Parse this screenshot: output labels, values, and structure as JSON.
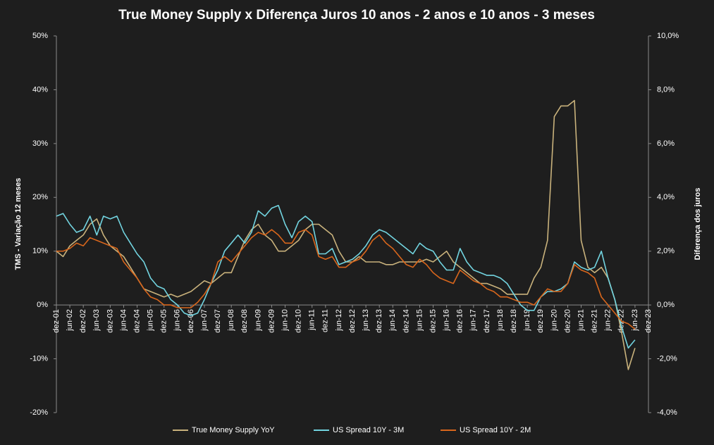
{
  "chart_data": {
    "type": "line",
    "title": "True Money Supply x Diferença Juros 10 anos - 2 anos e 10 anos - 3 meses",
    "y_label": "TMS - Variação  12 meses",
    "y2_label": "Diferença dos juros",
    "categories": [
      "dez-01",
      null,
      "jun-02",
      null,
      "dez-02",
      null,
      "jun-03",
      null,
      "dez-03",
      null,
      "jun-04",
      null,
      "dez-04",
      null,
      "jun-05",
      null,
      "dez-05",
      null,
      "jun-06",
      null,
      "dez-06",
      null,
      "jun-07",
      null,
      "dez-07",
      null,
      "jun-08",
      null,
      "dez-08",
      null,
      "jun-09",
      null,
      "dez-09",
      null,
      "jun-10",
      null,
      "dez-10",
      null,
      "jun-11",
      null,
      "dez-11",
      null,
      "jun-12",
      null,
      "dez-12",
      null,
      "jun-13",
      null,
      "dez-13",
      null,
      "jun-14",
      null,
      "dez-14",
      null,
      "jun-15",
      null,
      "dez-15",
      null,
      "jun-16",
      null,
      "dez-16",
      null,
      "jun-17",
      null,
      "dez-17",
      null,
      "jun-18",
      null,
      "dez-18",
      null,
      "jun-19",
      null,
      "dez-19",
      null,
      "jun-20",
      null,
      "dez-20",
      null,
      "jun-21",
      null,
      "dez-21",
      null,
      "jun-22",
      null,
      "dez-22",
      null,
      "jun-23",
      null,
      "dez-23"
    ],
    "series": [
      {
        "name": "True Money Supply YoY",
        "color": "#c9b27c",
        "values": [
          10,
          9,
          11,
          12,
          13,
          15,
          16,
          13,
          11,
          10,
          9,
          7,
          5,
          3,
          2.5,
          2,
          1.5,
          2,
          1.5,
          2,
          2.5,
          3.5,
          4.5,
          4,
          5,
          6,
          6,
          9,
          12,
          14,
          15,
          13,
          12,
          10,
          10,
          11,
          12,
          14,
          15,
          15,
          14,
          13,
          10,
          8,
          8,
          9,
          8,
          8,
          8,
          7.5,
          7.5,
          8,
          8,
          8,
          8,
          8.5,
          8,
          9,
          10,
          8,
          7,
          6,
          5,
          4,
          4,
          3.5,
          3,
          2,
          2,
          2,
          2,
          5,
          7,
          12,
          35,
          37,
          37,
          38,
          12,
          7,
          6,
          7,
          5,
          1,
          -5,
          -12,
          -8,
          null,
          null
        ]
      },
      {
        "name": "US Spread 10Y - 3M",
        "color": "#72d4e0",
        "axis": "y2",
        "values": [
          3.3,
          3.4,
          3.0,
          2.7,
          2.8,
          3.3,
          2.6,
          3.3,
          3.2,
          3.3,
          2.7,
          2.3,
          1.9,
          1.6,
          1.0,
          0.7,
          0.6,
          0.2,
          0.0,
          -0.3,
          -0.4,
          -0.3,
          0.2,
          0.8,
          1.3,
          2.0,
          2.3,
          2.6,
          2.3,
          2.7,
          3.5,
          3.3,
          3.6,
          3.7,
          3.0,
          2.5,
          3.1,
          3.3,
          3.1,
          1.9,
          1.9,
          2.1,
          1.5,
          1.6,
          1.7,
          1.9,
          2.2,
          2.6,
          2.8,
          2.7,
          2.5,
          2.3,
          2.1,
          1.9,
          2.3,
          2.1,
          2.0,
          1.6,
          1.3,
          1.3,
          2.1,
          1.6,
          1.3,
          1.2,
          1.1,
          1.1,
          1.0,
          0.8,
          0.4,
          0.0,
          -0.2,
          -0.2,
          0.3,
          0.5,
          0.5,
          0.6,
          0.8,
          1.6,
          1.4,
          1.3,
          1.4,
          2.0,
          1.0,
          0.2,
          -0.8,
          -1.6,
          -1.3,
          null,
          null
        ]
      },
      {
        "name": "US Spread 10Y - 2M",
        "color": "#d8661c",
        "axis": "y2",
        "values": [
          2.0,
          2.0,
          2.1,
          2.3,
          2.2,
          2.5,
          2.4,
          2.3,
          2.2,
          2.1,
          1.6,
          1.3,
          1.0,
          0.6,
          0.3,
          0.2,
          0.0,
          0.0,
          -0.1,
          -0.1,
          -0.1,
          0.1,
          0.4,
          0.8,
          1.6,
          1.8,
          1.6,
          1.9,
          2.2,
          2.5,
          2.7,
          2.6,
          2.8,
          2.6,
          2.3,
          2.3,
          2.7,
          2.8,
          2.6,
          1.8,
          1.7,
          1.8,
          1.4,
          1.4,
          1.6,
          1.7,
          2.0,
          2.4,
          2.6,
          2.3,
          2.1,
          1.8,
          1.5,
          1.4,
          1.7,
          1.5,
          1.2,
          1.0,
          0.9,
          0.8,
          1.3,
          1.1,
          0.9,
          0.8,
          0.6,
          0.5,
          0.3,
          0.3,
          0.2,
          0.1,
          0.1,
          0.0,
          0.3,
          0.6,
          0.5,
          0.5,
          0.8,
          1.5,
          1.3,
          1.2,
          1.0,
          0.3,
          0.0,
          -0.3,
          -0.6,
          -0.7,
          -0.9,
          null,
          null
        ]
      }
    ],
    "ylim": [
      -20,
      50
    ],
    "yticks": [
      {
        "value": -20,
        "label": "-20%"
      },
      {
        "value": -10,
        "label": "-10%"
      },
      {
        "value": 0,
        "label": "0%"
      },
      {
        "value": 10,
        "label": "10%"
      },
      {
        "value": 20,
        "label": "20%"
      },
      {
        "value": 30,
        "label": "30%"
      },
      {
        "value": 40,
        "label": "40%"
      },
      {
        "value": 50,
        "label": "50%"
      }
    ],
    "y2lim": [
      -4,
      10
    ],
    "y2ticks": [
      {
        "value": -4,
        "label": "-4,0%"
      },
      {
        "value": -2,
        "label": "-2,0%"
      },
      {
        "value": 0,
        "label": "0,0%"
      },
      {
        "value": 2,
        "label": "2,0%"
      },
      {
        "value": 4,
        "label": "4,0%"
      },
      {
        "value": 6,
        "label": "6,0%"
      },
      {
        "value": 8,
        "label": "8,0%"
      },
      {
        "value": 10,
        "label": "10,0%"
      }
    ],
    "grid": false,
    "legend": "bottom"
  }
}
